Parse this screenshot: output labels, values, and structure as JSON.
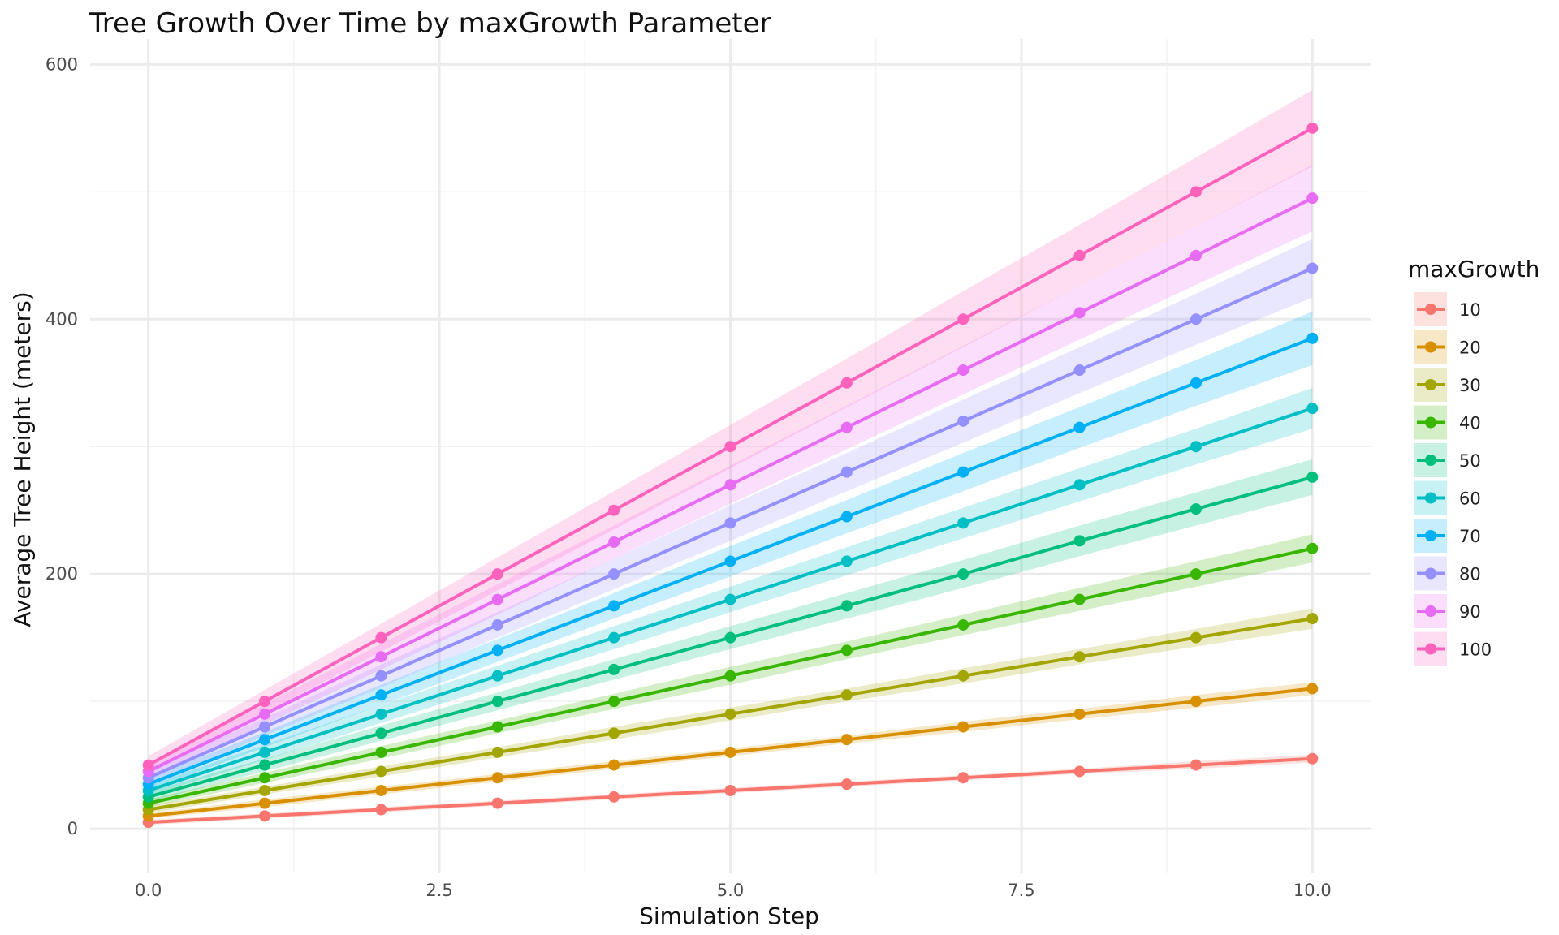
{
  "chart_data": {
    "type": "line",
    "title": "Tree Growth Over Time by maxGrowth Parameter",
    "xlabel": "Simulation Step",
    "ylabel": "Average Tree Height (meters)",
    "xlim": [
      -0.5,
      10.5
    ],
    "ylim": [
      -35,
      620
    ],
    "x_ticks": [
      0,
      2.5,
      5,
      7.5,
      10
    ],
    "x_tick_labels": [
      "0.0",
      "2.5",
      "5.0",
      "7.5",
      "10.0"
    ],
    "y_ticks": [
      0,
      200,
      400,
      600
    ],
    "y_tick_labels": [
      "0",
      "200",
      "400",
      "600"
    ],
    "grid": true,
    "legend_title": "maxGrowth",
    "legend_position": "right",
    "x": [
      0,
      1,
      2,
      3,
      4,
      5,
      6,
      7,
      8,
      9,
      10
    ],
    "series": [
      {
        "name": "10",
        "color": "#F8766D",
        "values": [
          5,
          10,
          15,
          20,
          25,
          30,
          35,
          40,
          45,
          50,
          55
        ],
        "ci_halfwidth": [
          2,
          2,
          2,
          2,
          2,
          2,
          2,
          2,
          2,
          3,
          3
        ]
      },
      {
        "name": "20",
        "color": "#D89000",
        "values": [
          10,
          20,
          30,
          40,
          50,
          60,
          70,
          80,
          90,
          100,
          110
        ],
        "ci_halfwidth": [
          2,
          3,
          3,
          3,
          3,
          3,
          3,
          4,
          4,
          5,
          5
        ]
      },
      {
        "name": "30",
        "color": "#A3A500",
        "values": [
          15,
          30,
          45,
          60,
          75,
          90,
          105,
          120,
          135,
          150,
          165
        ],
        "ci_halfwidth": [
          3,
          3,
          4,
          4,
          5,
          5,
          5,
          6,
          6,
          7,
          8
        ]
      },
      {
        "name": "40",
        "color": "#39B600",
        "values": [
          20,
          40,
          60,
          80,
          100,
          120,
          140,
          160,
          180,
          200,
          220
        ],
        "ci_halfwidth": [
          3,
          4,
          5,
          5,
          6,
          7,
          7,
          8,
          9,
          10,
          11
        ]
      },
      {
        "name": "50",
        "color": "#00BF7D",
        "values": [
          25,
          50,
          75,
          100,
          125,
          150,
          175,
          200,
          226,
          251,
          276
        ],
        "ci_halfwidth": [
          4,
          5,
          6,
          7,
          8,
          9,
          10,
          11,
          12,
          13,
          14
        ]
      },
      {
        "name": "60",
        "color": "#00BFC4",
        "values": [
          30,
          60,
          90,
          120,
          150,
          180,
          210,
          240,
          270,
          300,
          330
        ],
        "ci_halfwidth": [
          4,
          6,
          7,
          8,
          9,
          10,
          11,
          12,
          13,
          14,
          16
        ]
      },
      {
        "name": "70",
        "color": "#00B0F6",
        "values": [
          35,
          70,
          105,
          140,
          175,
          210,
          245,
          280,
          315,
          350,
          385
        ],
        "ci_halfwidth": [
          5,
          6,
          8,
          9,
          10,
          12,
          13,
          15,
          16,
          18,
          21
        ]
      },
      {
        "name": "80",
        "color": "#9590FF",
        "values": [
          40,
          80,
          120,
          160,
          200,
          240,
          280,
          320,
          360,
          400,
          440
        ],
        "ci_halfwidth": [
          6,
          7,
          9,
          10,
          12,
          14,
          15,
          17,
          18,
          20,
          23
        ]
      },
      {
        "name": "90",
        "color": "#E76BF3",
        "values": [
          45,
          90,
          135,
          180,
          225,
          270,
          315,
          360,
          405,
          450,
          495
        ],
        "ci_halfwidth": [
          6,
          8,
          10,
          12,
          13,
          15,
          17,
          19,
          21,
          23,
          26
        ]
      },
      {
        "name": "100",
        "color": "#FF62BC",
        "values": [
          50,
          100,
          150,
          200,
          250,
          300,
          350,
          400,
          450,
          500,
          550
        ],
        "ci_halfwidth": [
          7,
          9,
          11,
          13,
          15,
          17,
          19,
          22,
          24,
          27,
          30
        ]
      }
    ]
  }
}
